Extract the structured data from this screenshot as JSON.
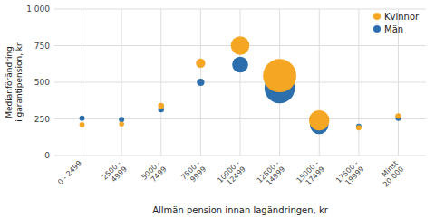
{
  "chart_data": {
    "type": "scatter",
    "x_label": "Allmän pension innan lagändringen, kr",
    "y_label": "Medianförändring\ni garantipension, kr",
    "categories": [
      "0 - 2499",
      "2500 -\n4999",
      "5000 -\n7499",
      "7500 -\n9999",
      "10000 -\n12499",
      "12500 -\n14999",
      "15000 -\n17499",
      "17500 -\n19999",
      "Minst\n20 000"
    ],
    "series": [
      {
        "name": "Kvinnor",
        "color": "#F5A623",
        "values": [
          210,
          215,
          340,
          630,
          750,
          545,
          240,
          190,
          270
        ],
        "sizes": [
          18,
          16,
          22,
          55,
          220,
          700,
          260,
          18,
          20
        ]
      },
      {
        "name": "Män",
        "color": "#2C6FAC",
        "values": [
          255,
          245,
          315,
          500,
          620,
          460,
          210,
          200,
          255
        ],
        "sizes": [
          18,
          18,
          22,
          35,
          160,
          580,
          220,
          18,
          18
        ]
      }
    ],
    "ylim": [
      0,
      1000
    ],
    "yticks": [
      0,
      250,
      500,
      750,
      {
        "value": 1000,
        "label": "1 000"
      }
    ],
    "grid": true,
    "legend": "upper right"
  }
}
